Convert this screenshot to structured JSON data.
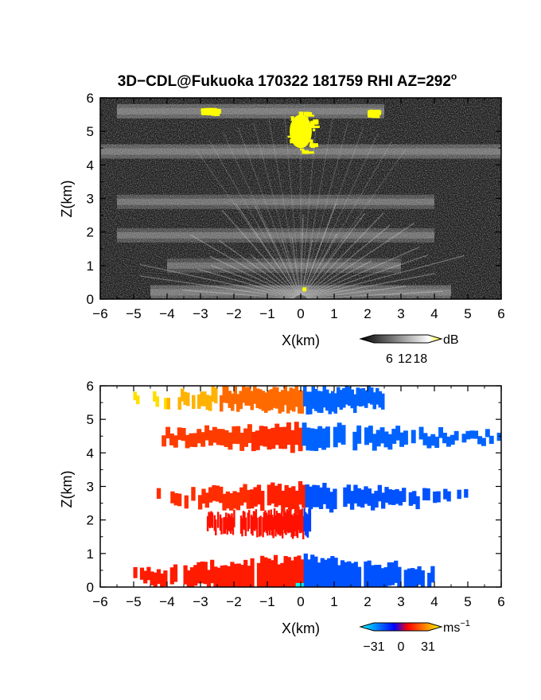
{
  "title": "3D−CDL@Fukuoka 170322 181759 RHI AZ=292",
  "title_superscript": "o",
  "chart_data": [
    {
      "type": "heatmap",
      "name": "reflectivity",
      "xlabel": "X(km)",
      "ylabel": "Z(km)",
      "xlim": [
        -6,
        6
      ],
      "ylim": [
        0,
        6
      ],
      "xticks": [
        "−6",
        "−5",
        "−4",
        "−3",
        "−2",
        "−1",
        "0",
        "1",
        "2",
        "3",
        "4",
        "5",
        "6"
      ],
      "yticks": [
        "0",
        "1",
        "2",
        "3",
        "4",
        "5",
        "6"
      ],
      "colorbar": {
        "unit": "dB",
        "ticks": [
          "6",
          "12",
          "18"
        ],
        "range": [
          0,
          21
        ],
        "colors": [
          "#000000",
          "#ffffff",
          "#ffff00"
        ]
      },
      "layers": [
        {
          "z": 0.2,
          "xrange": [
            -4.5,
            4.5
          ],
          "value": 10
        },
        {
          "z": 1.0,
          "xrange": [
            -4.0,
            3.0
          ],
          "value": 6
        },
        {
          "z": 1.9,
          "xrange": [
            -5.5,
            4.0
          ],
          "value": 7
        },
        {
          "z": 2.9,
          "xrange": [
            -5.5,
            4.0
          ],
          "value": 7
        },
        {
          "z": 4.4,
          "xrange": [
            -6.0,
            6.0
          ],
          "value": 9
        },
        {
          "z": 5.6,
          "xrange": [
            -5.5,
            2.5
          ],
          "value": 10
        }
      ],
      "saturated_regions": [
        {
          "x": [
            -0.4,
            0.4
          ],
          "z": [
            4.4,
            5.6
          ],
          "value": 20
        },
        {
          "x": [
            -3.0,
            -2.6
          ],
          "z": [
            5.6,
            5.7
          ],
          "value": 19
        },
        {
          "x": [
            2.0,
            2.2
          ],
          "z": [
            5.55,
            5.65
          ],
          "value": 19
        }
      ]
    },
    {
      "type": "heatmap",
      "name": "doppler_velocity",
      "xlabel": "X(km)",
      "ylabel": "Z(km)",
      "xlim": [
        -6,
        6
      ],
      "ylim": [
        0,
        6
      ],
      "xticks": [
        "−6",
        "−5",
        "−4",
        "−3",
        "−2",
        "−1",
        "0",
        "1",
        "2",
        "3",
        "4",
        "5",
        "6"
      ],
      "yticks": [
        "0",
        "1",
        "2",
        "3",
        "4",
        "5",
        "6"
      ],
      "colorbar": {
        "unit": "ms",
        "unit_superscript": "−1",
        "ticks": [
          "−31",
          "0",
          "31"
        ],
        "range": [
          -31,
          31
        ],
        "colors": [
          "#00ffff",
          "#0000ff",
          "#ff0000",
          "#ffff00"
        ]
      },
      "layers": [
        {
          "z": 0.35,
          "xrange": [
            -5.0,
            4.0
          ],
          "neg_velocity": -10,
          "pos_velocity": 10
        },
        {
          "z": 1.95,
          "xrange": [
            -2.8,
            0.3
          ],
          "neg_velocity": -8,
          "pos_velocity": 8
        },
        {
          "z": 2.7,
          "xrange": [
            -4.3,
            5.0
          ],
          "neg_velocity": -10,
          "pos_velocity": 11
        },
        {
          "z": 4.5,
          "xrange": [
            -4.5,
            6.0
          ],
          "neg_velocity": -12,
          "pos_velocity": 13
        },
        {
          "z": 5.65,
          "xrange": [
            -5.0,
            2.5
          ],
          "neg_velocity": -12,
          "pos_velocity": 20
        }
      ]
    }
  ]
}
